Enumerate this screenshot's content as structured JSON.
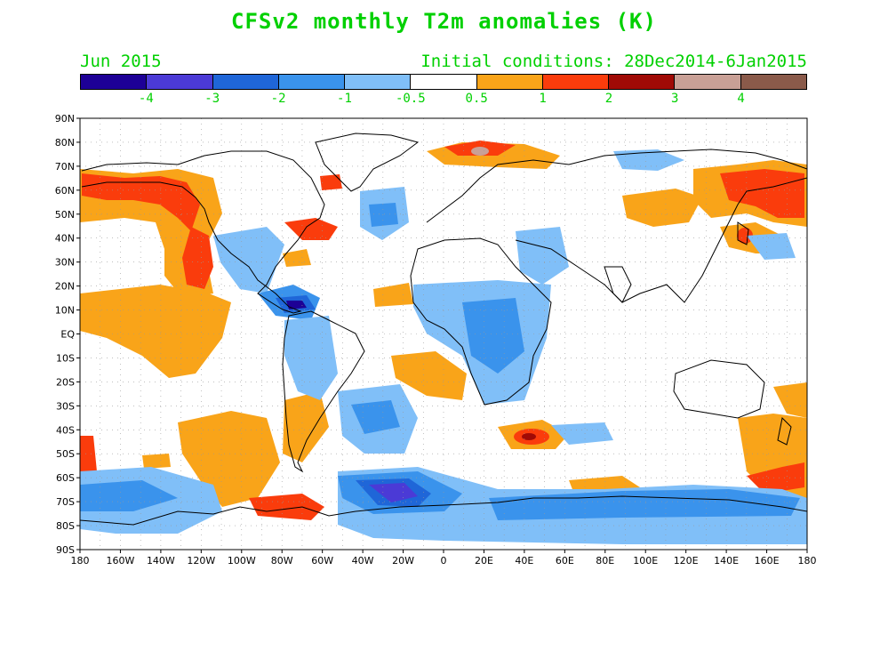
{
  "header": {
    "title": "CFSv2 monthly T2m anomalies (K)",
    "month": "Jun 2015",
    "initial_conditions": "Initial conditions: 28Dec2014-6Jan2015"
  },
  "colorbar": {
    "colors": [
      "#1d0096",
      "#4b3ad6",
      "#1f66d8",
      "#3a93ec",
      "#80bff8",
      "#ffffff",
      "#f9a419",
      "#fa3c0c",
      "#a00a06",
      "#c9a096",
      "#8a5a4a"
    ],
    "labels": [
      "-4",
      "-3",
      "-2",
      "-1",
      "-0.5",
      "0.5",
      "1",
      "2",
      "3",
      "4"
    ],
    "text_color": "#00d000"
  },
  "axes": {
    "latitude_labels": [
      "90N",
      "80N",
      "70N",
      "60N",
      "50N",
      "40N",
      "30N",
      "20N",
      "10N",
      "EQ",
      "10S",
      "20S",
      "30S",
      "40S",
      "50S",
      "60S",
      "70S",
      "80S",
      "90S"
    ],
    "longitude_labels": [
      "180",
      "160W",
      "140W",
      "120W",
      "100W",
      "80W",
      "60W",
      "40W",
      "20W",
      "0",
      "20E",
      "40E",
      "60E",
      "80E",
      "100E",
      "120E",
      "140E",
      "160E",
      "180"
    ]
  }
}
